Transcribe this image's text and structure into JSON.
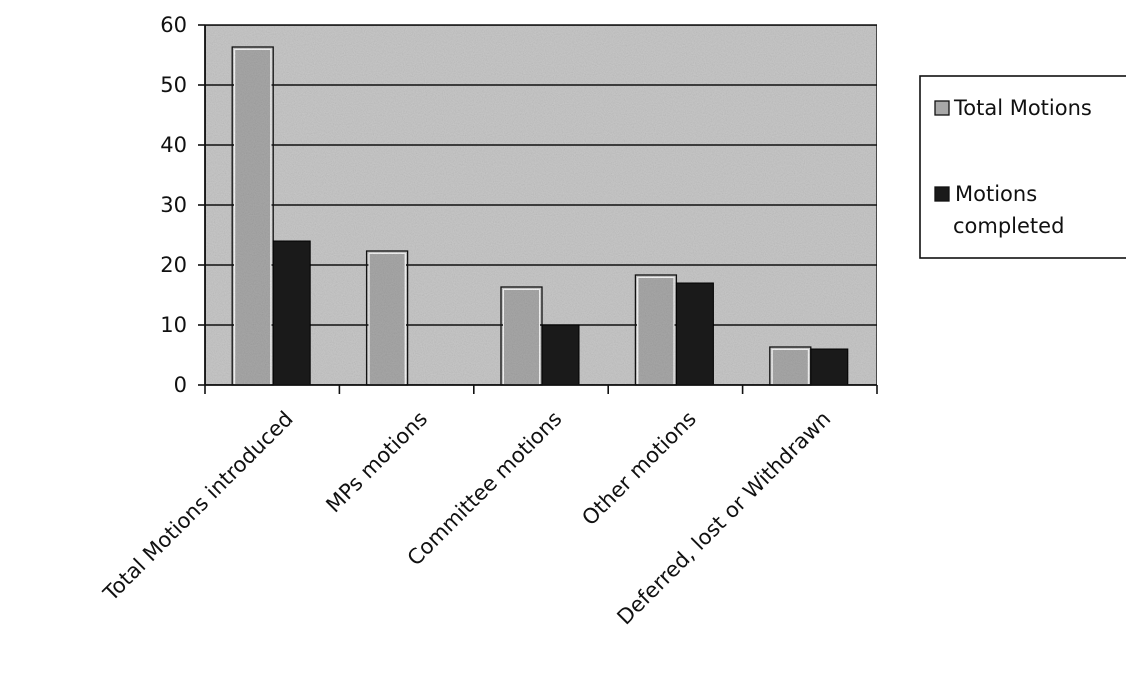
{
  "chart_data": {
    "type": "bar",
    "categories": [
      "Total Motions introduced",
      "MPs motions",
      "Committee motions",
      "Other motions",
      "Deferred, lost or Withdrawn"
    ],
    "series": [
      {
        "name": "Total Motions",
        "values": [
          56,
          22,
          16,
          18,
          6
        ],
        "color": "#a8a8a8"
      },
      {
        "name": "Motions completed",
        "values": [
          24,
          null,
          10,
          17,
          6
        ],
        "color": "#1a1a1a"
      }
    ],
    "ylim": [
      0,
      60
    ],
    "yticks": [
      0,
      10,
      20,
      30,
      40,
      50,
      60
    ],
    "grid": true,
    "legend_position": "right",
    "legend_lines": [
      [
        "Total Motions"
      ],
      [
        "Motions",
        "completed"
      ]
    ],
    "plot_background": "#c8c8c8"
  }
}
